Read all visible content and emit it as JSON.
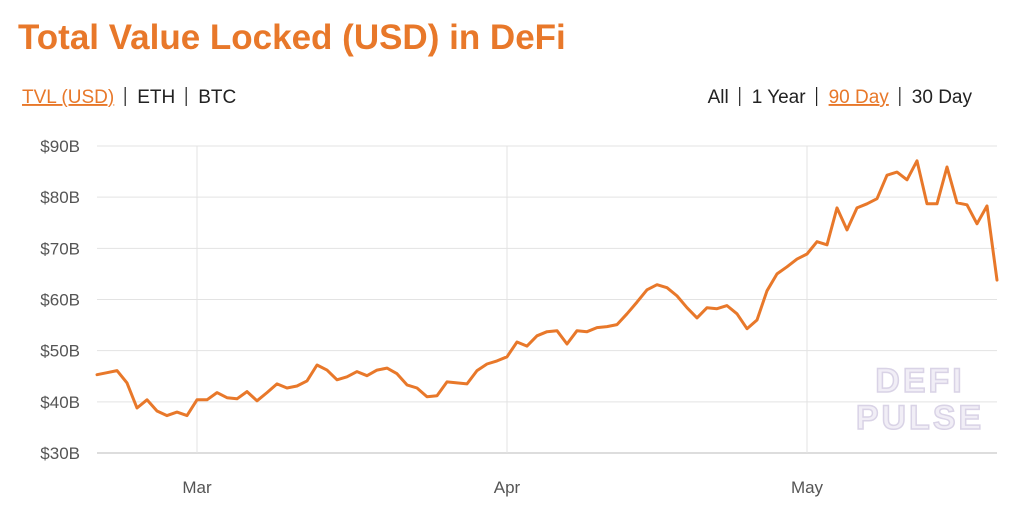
{
  "chart_data": {
    "type": "line",
    "title": "Total Value Locked (USD) in DeFi",
    "nav_left": [
      {
        "label": "TVL (USD)",
        "active": true
      },
      {
        "label": "ETH",
        "active": false
      },
      {
        "label": "BTC",
        "active": false
      }
    ],
    "nav_right": [
      {
        "label": "All",
        "active": false
      },
      {
        "label": "1 Year",
        "active": false
      },
      {
        "label": "90 Day",
        "active": true
      },
      {
        "label": "30 Day",
        "active": false
      }
    ],
    "watermark": [
      "DEFI",
      "PULSE"
    ],
    "categories": [
      null,
      null,
      null,
      null,
      null,
      null,
      null,
      null,
      null,
      null,
      "Mar",
      null,
      null,
      null,
      null,
      null,
      null,
      null,
      null,
      null,
      null,
      null,
      null,
      null,
      null,
      null,
      null,
      null,
      null,
      null,
      null,
      null,
      null,
      null,
      null,
      null,
      null,
      null,
      null,
      null,
      null,
      "Apr",
      null,
      null,
      null,
      null,
      null,
      null,
      null,
      null,
      null,
      null,
      null,
      null,
      null,
      null,
      null,
      null,
      null,
      null,
      null,
      null,
      null,
      null,
      null,
      null,
      null,
      null,
      null,
      null,
      null,
      "May",
      null,
      null,
      null,
      null,
      null,
      null,
      null,
      null,
      null,
      null,
      null,
      null,
      null,
      null,
      null,
      null,
      null,
      null,
      null
    ],
    "series": [
      {
        "name": "TVL (USD)",
        "color": "#e8782a",
        "values": [
          45.3,
          45.7,
          46.1,
          43.7,
          38.8,
          40.4,
          38.2,
          37.3,
          38.0,
          37.3,
          40.4,
          40.4,
          41.8,
          40.8,
          40.6,
          42.0,
          40.2,
          41.8,
          43.5,
          42.7,
          43.1,
          44.1,
          47.2,
          46.2,
          44.3,
          44.9,
          45.9,
          45.1,
          46.2,
          46.6,
          45.5,
          43.3,
          42.7,
          41.0,
          41.2,
          43.9,
          43.7,
          43.5,
          46.1,
          47.4,
          48.0,
          48.8,
          51.7,
          50.9,
          52.9,
          53.7,
          53.9,
          51.3,
          53.9,
          53.7,
          54.5,
          54.7,
          55.1,
          57.2,
          59.5,
          61.9,
          62.9,
          62.3,
          60.7,
          58.4,
          56.4,
          58.4,
          58.2,
          58.8,
          57.2,
          54.3,
          56.0,
          61.7,
          65.0,
          66.4,
          67.9,
          68.9,
          71.3,
          70.7,
          77.9,
          73.6,
          77.9,
          78.7,
          79.7,
          84.3,
          84.9,
          83.4,
          87.1,
          78.7,
          78.7,
          85.9,
          78.9,
          78.5,
          74.8,
          78.3,
          63.8
        ]
      }
    ],
    "ylim": [
      30,
      90
    ],
    "yticks": [
      {
        "value": 30,
        "label": "$30B"
      },
      {
        "value": 40,
        "label": "$40B"
      },
      {
        "value": 50,
        "label": "$50B"
      },
      {
        "value": 60,
        "label": "$60B"
      },
      {
        "value": 70,
        "label": "$70B"
      },
      {
        "value": 80,
        "label": "$80B"
      },
      {
        "value": 90,
        "label": "$90B"
      }
    ],
    "grid": true
  }
}
